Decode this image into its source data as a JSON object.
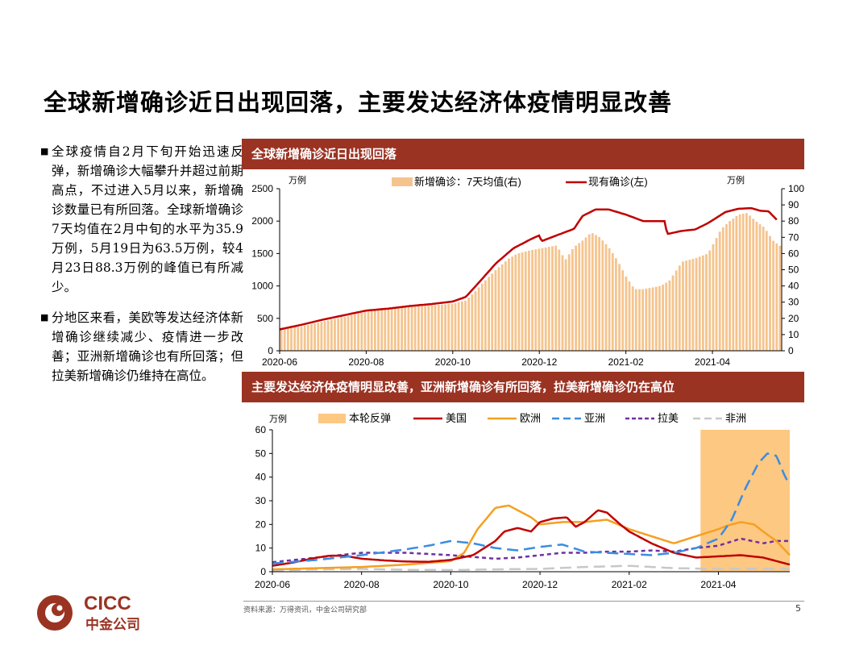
{
  "title": "全球新增确诊近日出现回落，主要发达经济体疫情明显改善",
  "bullets": [
    "全球疫情自2月下旬开始迅速反弹，新增确诊大幅攀升并超过前期高点，不过进入5月以来，新增确诊数量已有所回落。全球新增确诊7天均值在2月中旬的水平为35.9万例，5月19日为63.5万例，较4月23日88.3万例的峰值已有所减少。",
    "分地区来看，美欧等发达经济体新增确诊继续减少、疫情进一步改善；亚洲新增确诊也有所回落；但拉美新增确诊仍维持在高位。"
  ],
  "chart1_header": "全球新增确诊近日出现回落",
  "chart2_header": "主要发达经济体疫情明显改善，亚洲新增确诊有所回落，拉美新增确诊仍在高位",
  "source": "资料来源：万得资讯，中金公司研究部",
  "page_number": "5",
  "logo": {
    "text": "CICC",
    "sub": "中金公司"
  },
  "colors": {
    "brand": "#9b3323",
    "bar": "#f5c48e",
    "line_red": "#c00000",
    "europe": "#f5a020",
    "asia": "#3b8de0",
    "latam": "#7030a0",
    "africa": "#c8c8c8",
    "band": "#fdc882"
  },
  "chart_data": [
    {
      "type": "bar+line",
      "title": "全球新增确诊近日出现回落",
      "left_unit": "万例",
      "right_unit": "万例",
      "legend": [
        "新增确诊：7天均值(右)",
        "现有确诊(左)"
      ],
      "x_ticks": [
        "2020-06",
        "2020-08",
        "2020-10",
        "2020-12",
        "2021-02",
        "2021-04"
      ],
      "left_ylim": [
        0,
        2500
      ],
      "left_ticks": [
        "0",
        "500",
        "1000",
        "1500",
        "2000",
        "2500"
      ],
      "right_ylim": [
        0,
        100
      ],
      "right_ticks": [
        "0",
        "10",
        "20",
        "30",
        "40",
        "50",
        "60",
        "70",
        "80",
        "90",
        "100"
      ],
      "x_range": [
        0,
        11.6
      ],
      "bars_right": {
        "x": [
          0,
          0.5,
          1,
          1.5,
          2,
          2.5,
          3,
          3.5,
          4,
          4.3,
          4.5,
          4.7,
          5,
          5.3,
          5.5,
          5.8,
          6,
          6.2,
          6.4,
          6.6,
          6.8,
          7,
          7.2,
          7.4,
          7.6,
          7.8,
          8,
          8.2,
          8.4,
          8.6,
          8.8,
          9,
          9.3,
          9.6,
          9.9,
          10.2,
          10.4,
          10.6,
          10.8,
          11,
          11.2,
          11.4,
          11.6
        ],
        "values": [
          13,
          15,
          18,
          21,
          24,
          26,
          27,
          28,
          29,
          31,
          36,
          42,
          50,
          57,
          60,
          62,
          63,
          64,
          65,
          56,
          64,
          68,
          73,
          70,
          64,
          56,
          46,
          38,
          38,
          39,
          40,
          43,
          55,
          57,
          60,
          75,
          80,
          84,
          85,
          80,
          76,
          68,
          64
        ]
      },
      "line_left": {
        "name": "现有确诊(左)",
        "x": [
          0,
          0.5,
          1,
          1.5,
          2,
          2.5,
          3,
          3.5,
          4,
          4.3,
          4.6,
          5,
          5.4,
          5.8,
          6.0,
          6.05,
          6.4,
          6.8,
          7.0,
          7.3,
          7.6,
          8.0,
          8.4,
          8.6,
          8.8,
          8.9,
          8.95,
          9.3,
          9.6,
          9.9,
          10.3,
          10.6,
          10.9,
          11.1,
          11.3,
          11.5
        ],
        "values": [
          330,
          400,
          480,
          550,
          620,
          650,
          690,
          720,
          760,
          830,
          1050,
          1350,
          1580,
          1720,
          1780,
          1690,
          1780,
          1880,
          2080,
          2180,
          2180,
          2100,
          2000,
          2000,
          2000,
          2000,
          1800,
          1850,
          1870,
          1970,
          2140,
          2190,
          2200,
          2160,
          2150,
          2010
        ]
      }
    },
    {
      "type": "line",
      "title": "主要发达经济体疫情明显改善，亚洲新增确诊有所回落，拉美新增确诊仍在高位",
      "unit": "万例",
      "x_ticks": [
        "2020-06",
        "2020-08",
        "2020-10",
        "2020-12",
        "2021-02",
        "2021-04"
      ],
      "ylim": [
        0,
        60
      ],
      "y_ticks": [
        "0",
        "10",
        "20",
        "30",
        "40",
        "50",
        "60"
      ],
      "x_range": [
        0,
        11.6
      ],
      "band": {
        "name": "本轮反弹",
        "x": [
          9.6,
          11.6
        ]
      },
      "series": [
        {
          "name": "美国",
          "x": [
            0,
            0.5,
            1,
            1.3,
            1.6,
            2,
            2.5,
            3,
            3.5,
            4,
            4.5,
            5,
            5.2,
            5.5,
            5.8,
            6,
            6.3,
            6.6,
            6.8,
            7,
            7.3,
            7.5,
            7.8,
            8,
            8.5,
            9,
            9.5,
            10,
            10.5,
            11,
            11.4,
            11.6
          ],
          "values": [
            2.5,
            4,
            6,
            6.8,
            6.8,
            5.5,
            4.8,
            4.3,
            4.2,
            5,
            7,
            13,
            17,
            18.5,
            17,
            21,
            22.5,
            23,
            19,
            21,
            26,
            25,
            20,
            17,
            12,
            8,
            6,
            6.5,
            7,
            6,
            4,
            3
          ]
        },
        {
          "name": "欧洲",
          "x": [
            0,
            1,
            2,
            3,
            4,
            4.3,
            4.6,
            5,
            5.3,
            5.5,
            5.8,
            6,
            6.5,
            7,
            7.5,
            8,
            8.5,
            9,
            9.5,
            10,
            10.2,
            10.5,
            10.8,
            11,
            11.3,
            11.6
          ],
          "values": [
            1,
            1.5,
            2,
            3,
            4.5,
            8,
            18,
            27,
            28,
            26,
            23,
            20,
            21,
            21,
            22,
            18,
            15,
            12,
            15,
            18,
            19.5,
            21,
            20,
            17,
            13,
            7
          ]
        },
        {
          "name": "亚洲",
          "x": [
            0,
            1,
            2,
            3,
            3.5,
            4,
            4.5,
            5,
            5.5,
            6,
            6.5,
            7,
            7.5,
            8,
            8.5,
            9,
            9.5,
            10,
            10.3,
            10.6,
            10.9,
            11.1,
            11.3,
            11.5,
            11.6
          ],
          "values": [
            3.5,
            5,
            7,
            9.5,
            11,
            13,
            12,
            10,
            9,
            10.5,
            11.5,
            8.5,
            8,
            7.5,
            7,
            8,
            10,
            14,
            22,
            35,
            46,
            50,
            49,
            40,
            37
          ]
        },
        {
          "name": "拉美",
          "x": [
            0,
            1,
            2,
            3,
            4,
            5,
            5.5,
            6,
            6.5,
            7,
            7.5,
            8,
            8.5,
            9,
            9.5,
            10,
            10.5,
            11,
            11.3,
            11.6
          ],
          "values": [
            4,
            6,
            8,
            8,
            7,
            5.5,
            6,
            7,
            8,
            8,
            8.5,
            8.5,
            9,
            8.5,
            10,
            11,
            14,
            12,
            13,
            13
          ]
        },
        {
          "name": "非洲",
          "x": [
            0,
            1,
            2,
            3,
            4,
            5,
            6,
            7,
            8,
            9,
            10,
            11,
            11.6
          ],
          "values": [
            0.5,
            1,
            1.2,
            0.8,
            0.7,
            1,
            1.2,
            2,
            2.5,
            1.5,
            1.2,
            1.3,
            1.2
          ]
        }
      ]
    }
  ]
}
